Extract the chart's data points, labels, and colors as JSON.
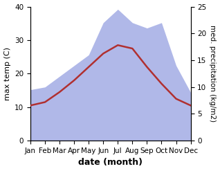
{
  "months": [
    "Jan",
    "Feb",
    "Mar",
    "Apr",
    "May",
    "Jun",
    "Jul",
    "Aug",
    "Sep",
    "Oct",
    "Nov",
    "Dec"
  ],
  "max_temp": [
    10.5,
    11.5,
    14.5,
    18.0,
    22.0,
    26.0,
    28.5,
    27.5,
    22.0,
    17.0,
    12.5,
    10.5
  ],
  "precipitation": [
    9.5,
    10.0,
    12.0,
    14.0,
    16.0,
    22.0,
    24.5,
    22.0,
    21.0,
    22.0,
    14.0,
    9.0
  ],
  "temp_color": "#b03030",
  "precip_color_fill": "#b0b8e8",
  "ylabel_left": "max temp (C)",
  "ylabel_right": "med. precipitation (kg/m2)",
  "xlabel": "date (month)",
  "ylim_left": [
    0,
    40
  ],
  "ylim_right": [
    0,
    25
  ],
  "yticks_left": [
    0,
    10,
    20,
    30,
    40
  ],
  "yticks_right": [
    0,
    5,
    10,
    15,
    20,
    25
  ],
  "bg_color": "#ffffff",
  "label_fontsize": 8,
  "tick_fontsize": 7.5
}
